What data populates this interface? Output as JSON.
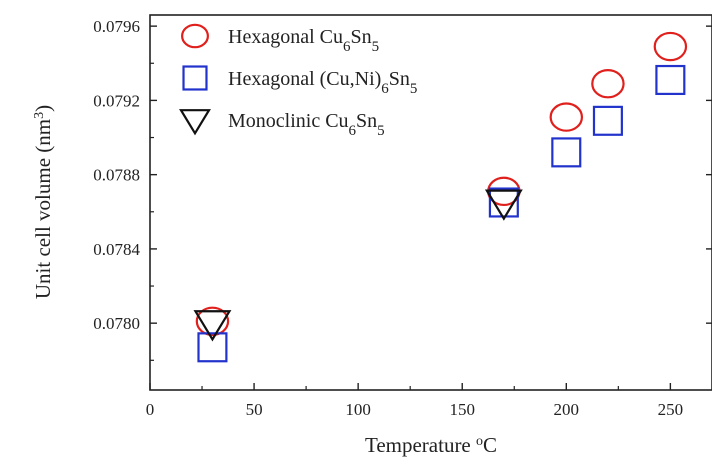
{
  "chart_data": {
    "type": "scatter",
    "title": "",
    "xlabel": {
      "base": "Temperature ",
      "sup": "o",
      "rest": "C"
    },
    "ylabel": {
      "base": "Unit cell volume (nm",
      "sup": "3",
      "rest": ")"
    },
    "xlim": [
      0,
      270
    ],
    "ylim": [
      0.07764,
      0.07966
    ],
    "xticks": [
      0,
      50,
      100,
      150,
      200,
      250
    ],
    "xtick_labels": [
      "0",
      "50",
      "100",
      "150",
      "200",
      "250"
    ],
    "yticks": [
      0.078,
      0.0784,
      0.0788,
      0.0792,
      0.0796
    ],
    "ytick_labels": [
      "0.0780",
      "0.0784",
      "0.0788",
      "0.0792",
      "0.0796"
    ],
    "grid": false,
    "legend_position": "top-left",
    "series": [
      {
        "name": "Hexagonal Cu6Sn5",
        "legend_parts": [
          [
            "Hexagonal Cu",
            ""
          ],
          [
            "6",
            "sub"
          ],
          [
            "Sn",
            ""
          ],
          [
            "5",
            "sub"
          ]
        ],
        "marker": "circle",
        "color": "#e0201c",
        "x": [
          30,
          170,
          200,
          220,
          250
        ],
        "y": [
          0.07801,
          0.07871,
          0.07911,
          0.07929,
          0.07949
        ]
      },
      {
        "name": "Hexagonal (Cu,Ni)6Sn5",
        "legend_parts": [
          [
            "Hexagonal (Cu,Ni)",
            ""
          ],
          [
            "6",
            "sub"
          ],
          [
            "Sn",
            ""
          ],
          [
            "5",
            "sub"
          ]
        ],
        "marker": "square",
        "color": "#2233cc",
        "x": [
          30,
          170,
          200,
          220,
          250
        ],
        "y": [
          0.07787,
          0.07865,
          0.07892,
          0.07909,
          0.07931
        ]
      },
      {
        "name": "Monoclinic Cu6Sn5",
        "legend_parts": [
          [
            "Monoclinic Cu",
            ""
          ],
          [
            "6",
            "sub"
          ],
          [
            "Sn",
            ""
          ],
          [
            "5",
            "sub"
          ]
        ],
        "marker": "triangle-down",
        "color": "#111111",
        "x": [
          30,
          170
        ],
        "y": [
          0.078,
          0.07865
        ]
      }
    ]
  }
}
